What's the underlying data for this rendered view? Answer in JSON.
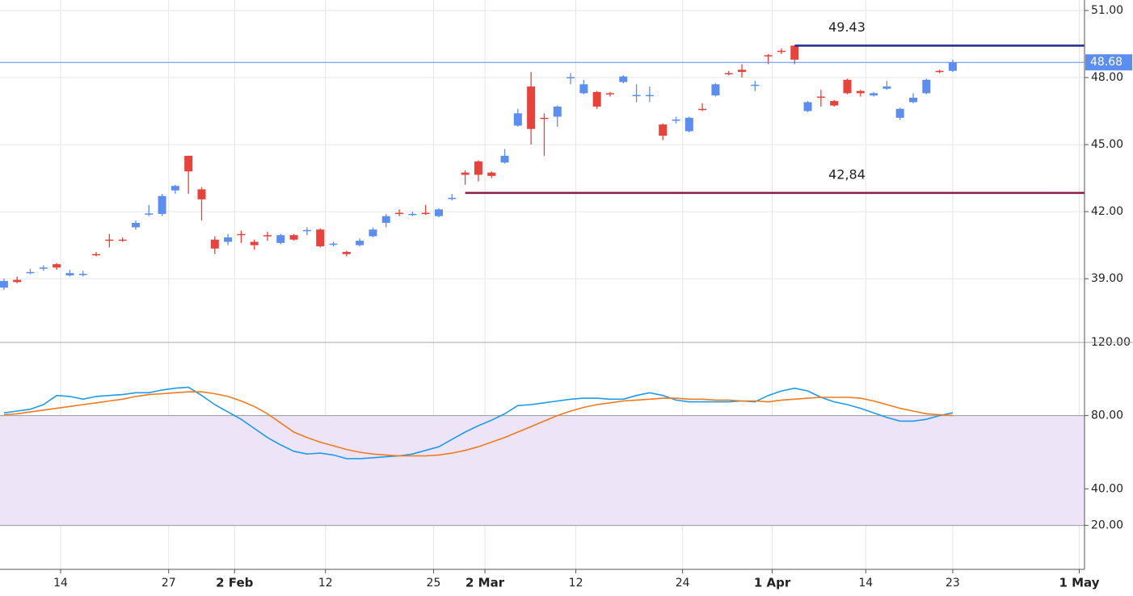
{
  "chart_data": [
    {
      "type": "candlestick",
      "x": [
        0,
        1,
        2,
        3,
        4,
        5,
        6,
        7,
        8,
        9,
        10,
        11,
        12,
        13,
        14,
        15,
        16,
        17,
        18,
        19,
        20,
        21,
        22,
        23,
        24,
        25,
        26,
        27,
        28,
        29,
        30,
        31,
        32,
        33,
        34,
        35,
        36,
        37,
        38,
        39,
        40,
        41,
        42,
        43,
        44,
        45,
        46,
        47,
        48,
        49,
        50,
        51,
        52,
        53,
        54,
        55,
        56,
        57,
        58,
        59,
        60,
        61,
        62,
        63,
        64,
        65,
        66,
        67,
        68,
        69,
        70,
        71,
        72
      ],
      "open": [
        38.6,
        38.95,
        39.25,
        39.45,
        39.65,
        39.15,
        39.2,
        40.1,
        40.75,
        40.75,
        41.3,
        41.9,
        41.9,
        42.95,
        44.5,
        43.0,
        40.75,
        40.65,
        41.0,
        40.65,
        40.95,
        40.6,
        40.95,
        41.15,
        41.2,
        40.55,
        40.2,
        40.5,
        40.9,
        41.5,
        41.95,
        41.85,
        41.95,
        41.8,
        42.6,
        43.75,
        44.25,
        43.75,
        44.2,
        45.85,
        47.6,
        46.2,
        46.25,
        48.0,
        47.3,
        47.35,
        47.3,
        47.8,
        47.2,
        47.2,
        45.9,
        46.1,
        45.6,
        46.6,
        47.2,
        48.2,
        48.35,
        47.65,
        49.0,
        49.2,
        49.43,
        46.5,
        47.15,
        46.95,
        47.9,
        47.4,
        47.2,
        47.5,
        46.2,
        46.9,
        47.3,
        48.3,
        48.3
      ],
      "high": [
        39.0,
        39.1,
        39.45,
        39.6,
        39.7,
        39.4,
        39.35,
        40.2,
        41.0,
        40.85,
        41.6,
        42.3,
        42.8,
        43.2,
        44.5,
        43.1,
        40.9,
        41.0,
        41.15,
        40.75,
        41.1,
        41.0,
        41.0,
        41.3,
        41.25,
        40.65,
        40.25,
        40.8,
        41.3,
        41.9,
        42.1,
        42.0,
        42.3,
        42.15,
        42.8,
        43.85,
        44.3,
        43.8,
        44.8,
        46.6,
        48.25,
        46.4,
        46.75,
        48.2,
        47.9,
        47.4,
        47.35,
        48.1,
        47.7,
        47.6,
        45.95,
        46.25,
        46.25,
        46.85,
        47.75,
        48.3,
        48.6,
        47.85,
        49.05,
        49.3,
        49.43,
        46.95,
        47.45,
        47.0,
        47.95,
        47.45,
        47.35,
        47.85,
        46.65,
        47.3,
        47.95,
        48.35,
        48.8
      ],
      "low": [
        38.5,
        38.8,
        39.2,
        39.35,
        39.4,
        39.1,
        39.1,
        40.0,
        40.4,
        40.65,
        41.2,
        41.8,
        41.8,
        42.8,
        42.8,
        41.6,
        40.1,
        40.5,
        40.6,
        40.3,
        40.7,
        40.55,
        40.7,
        40.95,
        40.4,
        40.45,
        40.0,
        40.45,
        40.85,
        41.3,
        41.8,
        41.8,
        41.85,
        41.75,
        42.5,
        43.2,
        43.35,
        43.5,
        44.15,
        45.8,
        45.0,
        44.5,
        45.8,
        47.7,
        47.25,
        46.6,
        47.15,
        47.75,
        46.9,
        46.9,
        45.2,
        45.95,
        45.55,
        46.5,
        47.15,
        48.1,
        48.0,
        47.4,
        48.6,
        49.05,
        48.6,
        46.45,
        46.7,
        46.7,
        47.25,
        47.15,
        47.15,
        47.45,
        46.1,
        46.85,
        47.25,
        48.2,
        48.25
      ],
      "close": [
        38.9,
        38.85,
        39.3,
        39.5,
        39.5,
        39.25,
        39.22,
        40.08,
        40.7,
        40.7,
        41.5,
        41.92,
        42.7,
        43.15,
        43.8,
        42.55,
        40.35,
        40.85,
        40.95,
        40.5,
        40.9,
        40.95,
        40.75,
        41.18,
        40.45,
        40.57,
        40.1,
        40.7,
        41.2,
        41.8,
        41.9,
        41.9,
        41.9,
        42.1,
        42.62,
        43.65,
        43.65,
        43.6,
        44.5,
        46.4,
        45.7,
        46.15,
        46.7,
        48.02,
        47.7,
        46.7,
        47.25,
        48.05,
        47.22,
        47.22,
        45.4,
        46.12,
        46.2,
        46.55,
        47.7,
        48.18,
        48.25,
        47.68,
        48.98,
        49.15,
        48.8,
        46.9,
        47.1,
        46.75,
        47.3,
        47.3,
        47.3,
        47.6,
        46.6,
        47.1,
        47.9,
        48.28,
        48.68
      ],
      "up_color": "#5b8ef0",
      "down_color": "#e8423b",
      "xlim": [
        -0.3,
        82
      ],
      "ylim": [
        36.15,
        51.47
      ],
      "yticks": [
        {
          "value": 51,
          "label": "51.00"
        },
        {
          "value": 48,
          "label": "48.00"
        },
        {
          "value": 45,
          "label": "45.00"
        },
        {
          "value": 42,
          "label": "42.00"
        },
        {
          "value": 39,
          "label": "39.00"
        }
      ],
      "price_line": {
        "value": 48.68,
        "label": "48.68",
        "color": "#5b8ef0"
      },
      "levels": [
        {
          "value": 49.43,
          "label": "49.43",
          "color": "#1f2a8f",
          "start": 60
        },
        {
          "value": 42.84,
          "label": "42,84",
          "color": "#8a1c4a",
          "start": 35
        }
      ],
      "grid": true
    },
    {
      "type": "line",
      "x": [
        0,
        1,
        2,
        3,
        4,
        5,
        6,
        7,
        8,
        9,
        10,
        11,
        12,
        13,
        14,
        15,
        16,
        17,
        18,
        19,
        20,
        21,
        22,
        23,
        24,
        25,
        26,
        27,
        28,
        29,
        30,
        31,
        32,
        33,
        34,
        35,
        36,
        37,
        38,
        39,
        40,
        41,
        42,
        43,
        44,
        45,
        46,
        47,
        48,
        49,
        50,
        51,
        52,
        53,
        54,
        55,
        56,
        57,
        58,
        59,
        60,
        61,
        62,
        63,
        64,
        65,
        66,
        67,
        68,
        69,
        70,
        71,
        72
      ],
      "series": [
        {
          "color": "#1e9be8",
          "values": [
            81.5,
            82.5,
            83.5,
            86,
            91,
            90.5,
            89,
            90.5,
            91,
            91.5,
            92.5,
            92.5,
            94,
            95,
            95.5,
            91,
            86,
            82,
            78,
            73,
            68,
            64,
            60.5,
            59,
            59.5,
            58.5,
            56.5,
            56.5,
            57,
            57.5,
            58,
            59,
            61,
            63,
            67,
            71,
            74.5,
            77.5,
            81,
            85.5,
            86,
            87,
            88,
            89,
            89.5,
            89.5,
            89,
            89,
            91,
            92.5,
            91,
            88.5,
            87.5,
            87.5,
            87.5,
            87.5,
            88,
            87.5,
            91,
            93.5,
            95,
            93.5,
            90,
            87.5,
            86,
            84,
            81.5,
            79,
            77,
            77,
            78,
            80,
            81.5
          ]
        },
        {
          "color": "#f07a1e",
          "values": [
            80.5,
            81,
            82,
            83,
            84,
            85,
            86,
            87,
            88,
            89,
            90.5,
            91.5,
            92,
            92.5,
            93,
            93,
            92,
            90.5,
            88,
            85,
            81,
            76,
            71,
            68,
            65.5,
            63.5,
            61.5,
            60,
            59,
            58.5,
            58,
            58,
            58,
            58.5,
            59.5,
            61,
            63,
            65.5,
            68,
            71,
            74,
            77,
            80,
            82.5,
            84.5,
            86,
            87,
            88,
            88.5,
            89,
            89.5,
            89.5,
            89,
            89,
            88.5,
            88.5,
            88,
            88,
            87.5,
            88.5,
            89,
            89.5,
            90,
            90,
            90,
            89.5,
            88,
            86,
            84,
            82.5,
            81,
            80.5,
            80
          ]
        }
      ],
      "band": [
        20,
        80
      ],
      "band_color": "#ede4f8",
      "xlim": [
        -0.3,
        82
      ],
      "ylim": [
        -4,
        120
      ],
      "yticks": [
        {
          "value": 120,
          "label": "120.00"
        },
        {
          "value": 80,
          "label": "80.00"
        },
        {
          "value": 40,
          "label": "40.00"
        },
        {
          "value": 20,
          "label": "20.00"
        }
      ],
      "xticks": [
        {
          "value": 4.3,
          "label": "14"
        },
        {
          "value": 12.5,
          "label": "27"
        },
        {
          "value": 17.5,
          "label": "2 Feb"
        },
        {
          "value": 24.4,
          "label": "12"
        },
        {
          "value": 32.6,
          "label": "25"
        },
        {
          "value": 36.5,
          "label": "2 Mar"
        },
        {
          "value": 43.4,
          "label": "12"
        },
        {
          "value": 51.5,
          "label": "24"
        },
        {
          "value": 58.3,
          "label": "1 Apr"
        },
        {
          "value": 65.4,
          "label": "14"
        },
        {
          "value": 72,
          "label": "23"
        },
        {
          "value": 81.6,
          "label": "1 May"
        }
      ],
      "grid": true
    }
  ]
}
